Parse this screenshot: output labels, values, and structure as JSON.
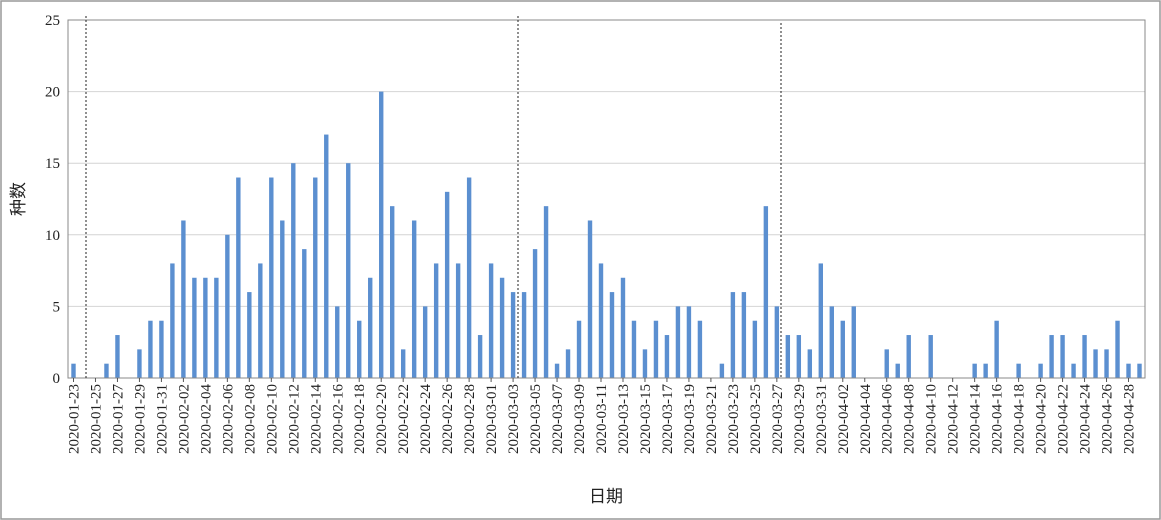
{
  "chart_data": {
    "type": "bar",
    "x_label": "日期",
    "y_label": "种数",
    "categories": [
      "2020-01-23",
      null,
      "2020-01-25",
      null,
      "2020-01-27",
      null,
      "2020-01-29",
      null,
      "2020-01-31",
      null,
      "2020-02-02",
      null,
      "2020-02-04",
      null,
      "2020-02-06",
      null,
      "2020-02-08",
      null,
      "2020-02-10",
      null,
      "2020-02-12",
      null,
      "2020-02-14",
      null,
      "2020-02-16",
      null,
      "2020-02-18",
      null,
      "2020-02-20",
      null,
      "2020-02-22",
      null,
      "2020-02-24",
      null,
      "2020-02-26",
      null,
      "2020-02-28",
      null,
      "2020-03-01",
      null,
      "2020-03-03",
      null,
      "2020-03-05",
      null,
      "2020-03-07",
      null,
      "2020-03-09",
      null,
      "2020-03-11",
      null,
      "2020-03-13",
      null,
      "2020-03-15",
      null,
      "2020-03-17",
      null,
      "2020-03-19",
      null,
      "2020-03-21",
      null,
      "2020-03-23",
      null,
      "2020-03-25",
      null,
      "2020-03-27",
      null,
      "2020-03-29",
      null,
      "2020-03-31",
      null,
      "2020-04-02",
      null,
      "2020-04-04",
      null,
      "2020-04-06",
      null,
      "2020-04-08",
      null,
      "2020-04-10",
      null,
      "2020-04-12",
      null,
      "2020-04-14",
      null,
      "2020-04-16",
      null,
      "2020-04-18",
      null,
      "2020-04-20",
      null,
      "2020-04-22",
      null,
      "2020-04-24",
      null,
      "2020-04-26",
      null,
      "2020-04-28",
      null
    ],
    "values": [
      1,
      0,
      0,
      1,
      3,
      0,
      2,
      4,
      4,
      8,
      11,
      7,
      7,
      7,
      10,
      14,
      6,
      8,
      14,
      11,
      15,
      9,
      14,
      17,
      5,
      15,
      4,
      7,
      20,
      12,
      2,
      11,
      5,
      8,
      13,
      8,
      14,
      3,
      8,
      7,
      6,
      6,
      9,
      12,
      1,
      2,
      4,
      11,
      8,
      6,
      7,
      4,
      2,
      4,
      3,
      5,
      5,
      4,
      0,
      1,
      6,
      6,
      4,
      12,
      5,
      3,
      3,
      2,
      8,
      5,
      4,
      5,
      0,
      0,
      2,
      1,
      3,
      0,
      3,
      0,
      0,
      0,
      1,
      1,
      4,
      0,
      1,
      0,
      1,
      3,
      3,
      1,
      3,
      2,
      2,
      4,
      1,
      1
    ],
    "color": "#5b8fd0",
    "ylim": [
      0,
      25
    ],
    "yticks": [
      0,
      5,
      10,
      15,
      20,
      25
    ],
    "grid": true
  }
}
